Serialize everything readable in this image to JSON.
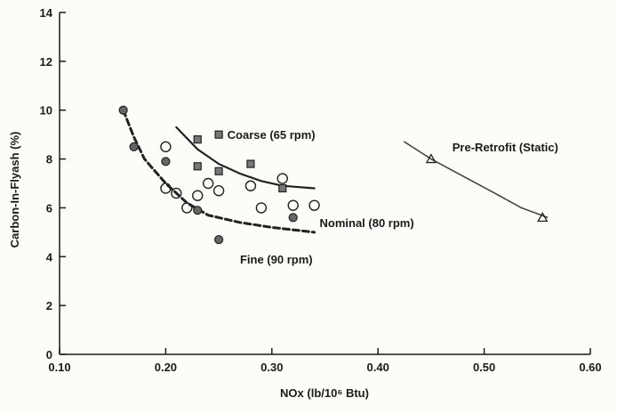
{
  "chart_data": {
    "type": "scatter",
    "xlabel": "NOx (lb/10⁶ Btu)",
    "ylabel": "Carbon-In-Flyash (%)",
    "xlim": [
      0.1,
      0.6
    ],
    "ylim": [
      0,
      14
    ],
    "x_ticks": [
      "0.10",
      "0.20",
      "0.30",
      "0.40",
      "0.50",
      "0.60"
    ],
    "y_ticks": [
      "0",
      "2",
      "4",
      "6",
      "8",
      "10",
      "12",
      "14"
    ],
    "grid": false,
    "series": [
      {
        "name": "Coarse (65 rpm)",
        "marker": "square",
        "points": [
          [
            0.23,
            8.8
          ],
          [
            0.23,
            7.7
          ],
          [
            0.25,
            9.0
          ],
          [
            0.25,
            7.5
          ],
          [
            0.28,
            7.8
          ],
          [
            0.31,
            6.8
          ]
        ],
        "fit": [
          [
            0.21,
            9.3
          ],
          [
            0.23,
            8.4
          ],
          [
            0.25,
            7.8
          ],
          [
            0.27,
            7.4
          ],
          [
            0.29,
            7.1
          ],
          [
            0.31,
            6.9
          ],
          [
            0.34,
            6.8
          ]
        ]
      },
      {
        "name": "Nominal (80 rpm)",
        "marker": "circle",
        "points": [
          [
            0.2,
            8.5
          ],
          [
            0.2,
            6.8
          ],
          [
            0.21,
            6.6
          ],
          [
            0.22,
            6.0
          ],
          [
            0.23,
            6.5
          ],
          [
            0.24,
            7.0
          ],
          [
            0.25,
            6.7
          ],
          [
            0.28,
            6.9
          ],
          [
            0.29,
            6.0
          ],
          [
            0.31,
            7.2
          ],
          [
            0.32,
            6.1
          ],
          [
            0.34,
            6.1
          ]
        ],
        "fit": []
      },
      {
        "name": "Fine (90 rpm)",
        "marker": "filled-circle",
        "points": [
          [
            0.16,
            10.0
          ],
          [
            0.17,
            8.5
          ],
          [
            0.2,
            7.9
          ],
          [
            0.23,
            5.9
          ],
          [
            0.25,
            4.7
          ],
          [
            0.32,
            5.6
          ]
        ],
        "fit": [
          [
            0.16,
            10.0
          ],
          [
            0.17,
            8.9
          ],
          [
            0.18,
            8.0
          ],
          [
            0.2,
            7.0
          ],
          [
            0.22,
            6.2
          ],
          [
            0.24,
            5.7
          ],
          [
            0.27,
            5.4
          ],
          [
            0.3,
            5.2
          ],
          [
            0.34,
            5.0
          ]
        ]
      },
      {
        "name": "Pre-Retrofit (Static)",
        "marker": "triangle",
        "points": [
          [
            0.45,
            8.0
          ],
          [
            0.555,
            5.6
          ]
        ],
        "fit": [
          [
            0.425,
            8.7
          ],
          [
            0.45,
            8.0
          ],
          [
            0.48,
            7.3
          ],
          [
            0.51,
            6.6
          ],
          [
            0.535,
            6.0
          ],
          [
            0.56,
            5.6
          ]
        ]
      }
    ],
    "annotations": [
      {
        "text": "Coarse (65 rpm)",
        "x": 0.258,
        "y": 9.0
      },
      {
        "text": "Nominal (80 rpm)",
        "x": 0.345,
        "y": 5.4
      },
      {
        "text": "Fine (90 rpm)",
        "x": 0.27,
        "y": 3.9
      },
      {
        "text": "Pre-Retrofit (Static)",
        "x": 0.47,
        "y": 8.5
      }
    ]
  }
}
